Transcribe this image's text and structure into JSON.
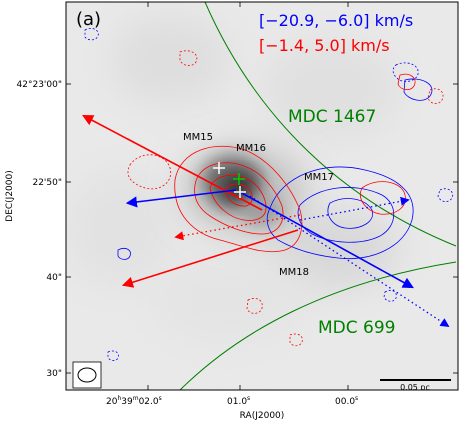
{
  "chart_data": {
    "type": "map",
    "panel_label": "(a)",
    "xlabel": "RA(J2000)",
    "ylabel": "DEC(J2000)",
    "x_ticks": [
      {
        "label": "20h39m02.0s",
        "main": "20",
        "h": "h",
        "mid": "39",
        "m": "m",
        "sec": "02.0",
        "s": "s"
      },
      {
        "label": "01.0s",
        "main": "01.0",
        "s": "s"
      },
      {
        "label": "00.0s",
        "main": "00.0",
        "s": "s"
      }
    ],
    "y_ticks": [
      "42°23'00\"",
      "22'50\"",
      "40\"",
      "30\""
    ],
    "velocity_ranges": {
      "blue": {
        "text": "[−20.9, −6.0] km/s",
        "color": "#0000ff"
      },
      "red": {
        "text": "[−1.4, 5.0] km/s",
        "color": "#ff0000"
      }
    },
    "sources": [
      {
        "name": "MM15",
        "marker": "white-cross"
      },
      {
        "name": "MM16",
        "marker": "green-cross"
      },
      {
        "name": "MM17",
        "marker": "white-cross"
      },
      {
        "name": "MM18",
        "marker": "none"
      }
    ],
    "filaments": [
      {
        "name": "MDC 1467",
        "color": "#008000"
      },
      {
        "name": "MDC 699",
        "color": "#008000"
      }
    ],
    "scalebar": {
      "text": "0.05 pc"
    },
    "beam": {
      "shape": "ellipse"
    },
    "outflow_lobes": [
      {
        "lobe": "red",
        "style": "solid"
      },
      {
        "lobe": "red",
        "style": "solid"
      },
      {
        "lobe": "red",
        "style": "dotted"
      },
      {
        "lobe": "blue",
        "style": "solid"
      },
      {
        "lobe": "blue",
        "style": "solid"
      },
      {
        "lobe": "blue",
        "style": "dotted"
      }
    ],
    "colors": {
      "blue": "#0000ff",
      "red": "#ff0000",
      "green": "#008000",
      "background": "grayscale"
    }
  }
}
